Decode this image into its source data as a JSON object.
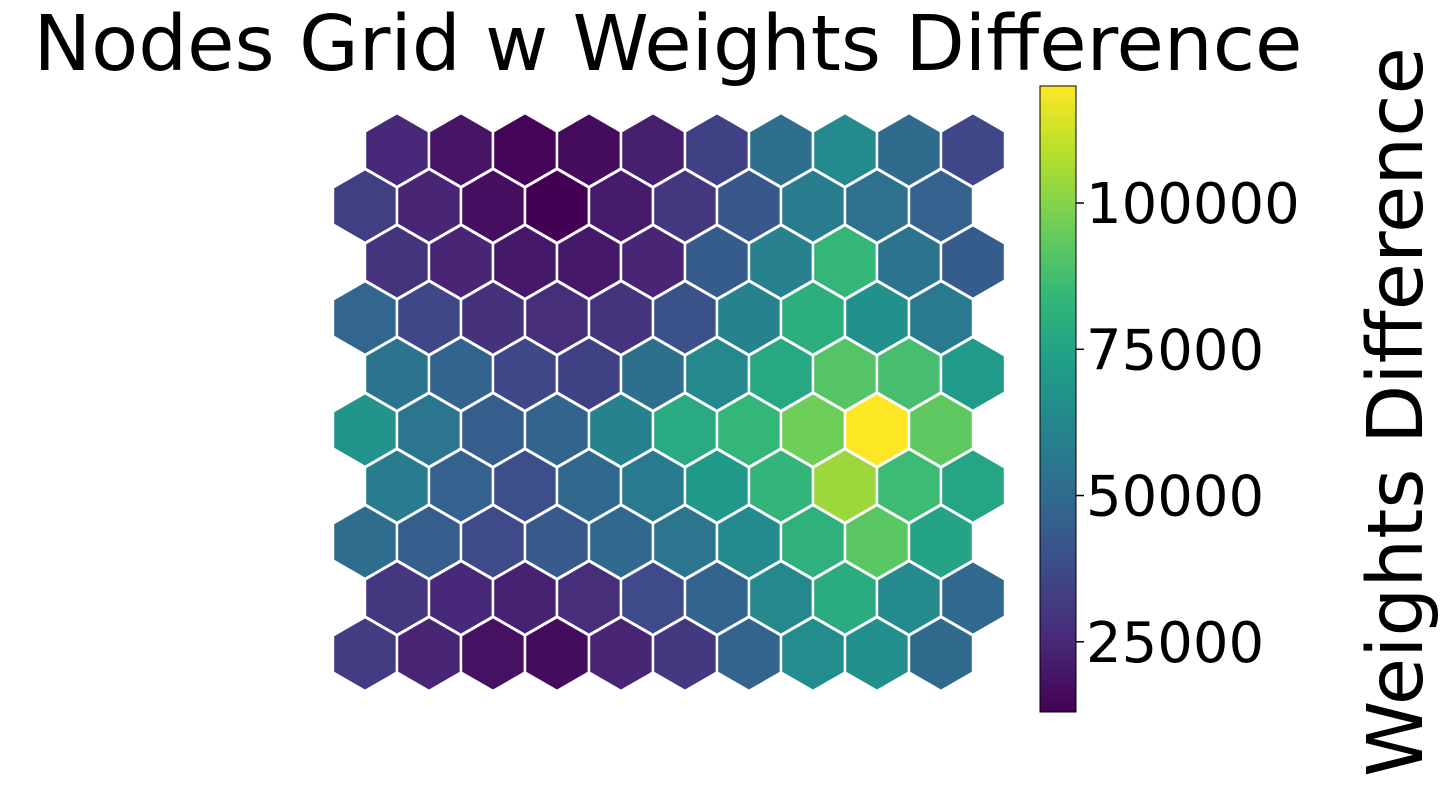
{
  "chart_data": {
    "type": "heatmap",
    "subtype": "hexagonal-grid",
    "title": "Nodes Grid w Weights Difference",
    "colorbar": {
      "label": "Weights Difference",
      "ticks": [
        25000,
        50000,
        75000,
        100000
      ],
      "tick_labels": [
        "25000",
        "50000",
        "75000",
        "100000"
      ],
      "range": [
        13000,
        120000
      ],
      "colormap": "viridis"
    },
    "grid": {
      "rows": 10,
      "cols": 10,
      "row_order": "top-to-bottom",
      "row_offset": "odd rows (from top, 0-indexed even) shifted right"
    },
    "values": [
      [
        25000,
        19000,
        14000,
        16000,
        22000,
        34000,
        52000,
        64000,
        50000,
        36000
      ],
      [
        33000,
        24000,
        17000,
        13000,
        21000,
        30000,
        42000,
        58000,
        53000,
        46000
      ],
      [
        29000,
        24000,
        20000,
        20000,
        24000,
        44000,
        60000,
        84000,
        54000,
        44000
      ],
      [
        48000,
        36000,
        28000,
        27000,
        29000,
        40000,
        61000,
        80000,
        67000,
        57000
      ],
      [
        54000,
        47000,
        36000,
        34000,
        52000,
        63000,
        77000,
        91000,
        88000,
        71000
      ],
      [
        68000,
        55000,
        45000,
        47000,
        61000,
        78000,
        84000,
        96000,
        120000,
        93000
      ],
      [
        58000,
        46000,
        39000,
        49000,
        57000,
        70000,
        83000,
        104000,
        86000,
        76000
      ],
      [
        51000,
        45000,
        37000,
        43000,
        49000,
        55000,
        64000,
        81000,
        92000,
        75000
      ],
      [
        30000,
        25000,
        23000,
        27000,
        37000,
        47000,
        63000,
        79000,
        64000,
        49000
      ],
      [
        32000,
        24000,
        18000,
        16000,
        24000,
        31000,
        47000,
        65000,
        66000,
        50000
      ]
    ]
  }
}
